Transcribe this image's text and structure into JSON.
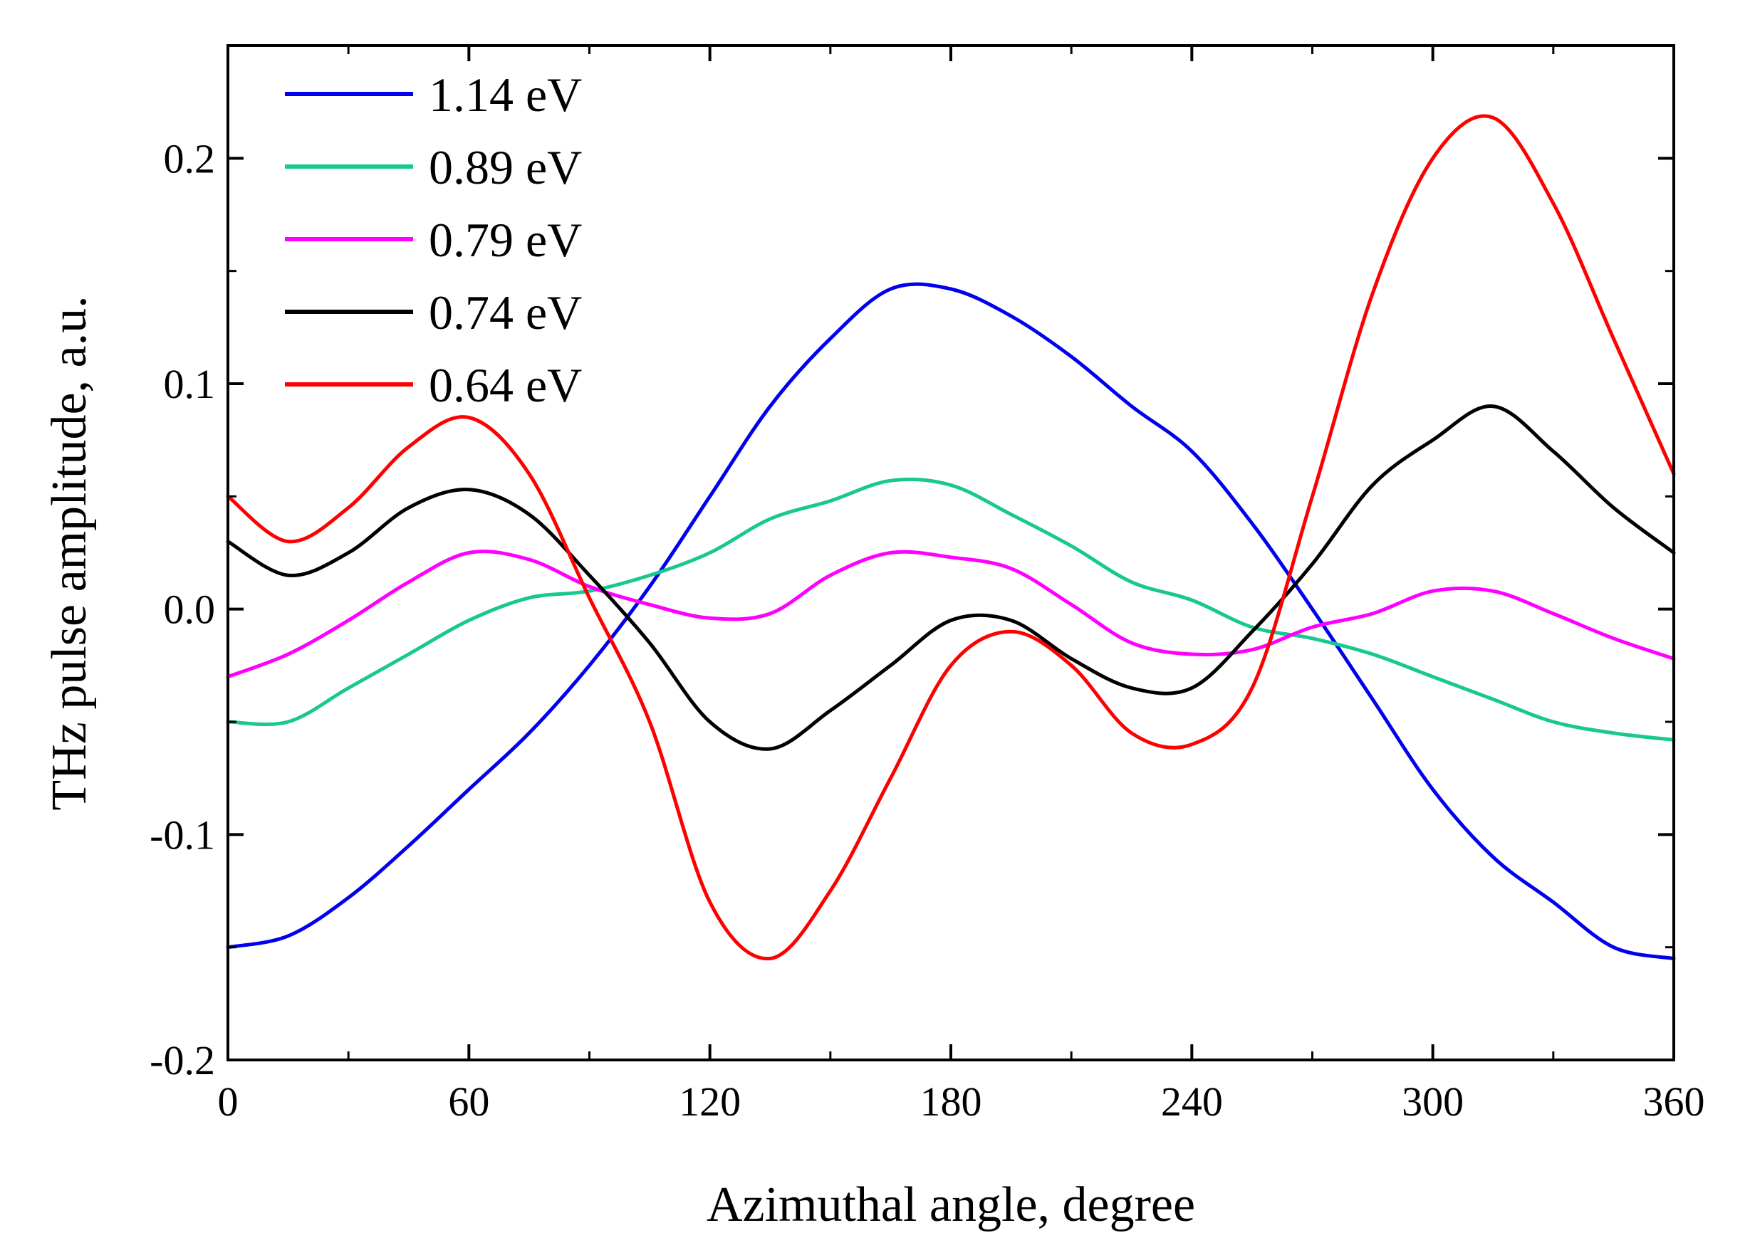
{
  "chart_data": {
    "type": "line",
    "xlabel": "Azimuthal angle, degree",
    "ylabel": "THz pulse amplitude, a.u.",
    "xlim": [
      0,
      360
    ],
    "ylim": [
      -0.2,
      0.25
    ],
    "x_ticks": [
      0,
      60,
      120,
      180,
      240,
      300,
      360
    ],
    "x_tick_labels": [
      "0",
      "60",
      "120",
      "180",
      "240",
      "300",
      "360"
    ],
    "y_ticks": [
      -0.2,
      -0.1,
      0.0,
      0.1,
      0.2
    ],
    "y_tick_labels": [
      "-0.2",
      "-0.1",
      "0.0",
      "0.1",
      "0.2"
    ],
    "grid": false,
    "legend_position": "top-left",
    "x": [
      0,
      15,
      30,
      45,
      60,
      75,
      90,
      105,
      120,
      135,
      150,
      165,
      180,
      195,
      210,
      225,
      240,
      255,
      270,
      285,
      300,
      315,
      330,
      345,
      360
    ],
    "series": [
      {
        "name": "1.14 eV",
        "color": "#0000ee",
        "values": [
          -0.15,
          -0.145,
          -0.128,
          -0.105,
          -0.08,
          -0.055,
          -0.025,
          0.01,
          0.05,
          0.09,
          0.12,
          0.142,
          0.142,
          0.13,
          0.112,
          0.09,
          0.07,
          0.038,
          0.0,
          -0.04,
          -0.08,
          -0.11,
          -0.13,
          -0.15,
          -0.155
        ]
      },
      {
        "name": "0.89 eV",
        "color": "#18c890",
        "values": [
          -0.05,
          -0.05,
          -0.035,
          -0.02,
          -0.005,
          0.005,
          0.008,
          0.015,
          0.025,
          0.04,
          0.048,
          0.057,
          0.055,
          0.042,
          0.028,
          0.012,
          0.004,
          -0.008,
          -0.013,
          -0.02,
          -0.03,
          -0.04,
          -0.05,
          -0.055,
          -0.058
        ]
      },
      {
        "name": "0.79 eV",
        "color": "#ff00ff",
        "values": [
          -0.03,
          -0.02,
          -0.005,
          0.012,
          0.025,
          0.022,
          0.01,
          0.002,
          -0.004,
          -0.002,
          0.015,
          0.025,
          0.023,
          0.018,
          0.002,
          -0.015,
          -0.02,
          -0.018,
          -0.008,
          -0.002,
          0.008,
          0.008,
          -0.002,
          -0.013,
          -0.022
        ]
      },
      {
        "name": "0.74 eV",
        "color": "#000000",
        "values": [
          0.03,
          0.015,
          0.025,
          0.045,
          0.053,
          0.042,
          0.015,
          -0.015,
          -0.05,
          -0.062,
          -0.045,
          -0.025,
          -0.005,
          -0.005,
          -0.022,
          -0.035,
          -0.035,
          -0.01,
          0.02,
          0.055,
          0.075,
          0.09,
          0.07,
          0.045,
          0.025
        ]
      },
      {
        "name": "0.64 eV",
        "color": "#ff0000",
        "values": [
          0.05,
          0.03,
          0.045,
          0.072,
          0.085,
          0.06,
          0.005,
          -0.05,
          -0.13,
          -0.155,
          -0.125,
          -0.075,
          -0.025,
          -0.01,
          -0.025,
          -0.055,
          -0.06,
          -0.035,
          0.05,
          0.14,
          0.2,
          0.218,
          0.18,
          0.12,
          0.06
        ]
      }
    ]
  }
}
